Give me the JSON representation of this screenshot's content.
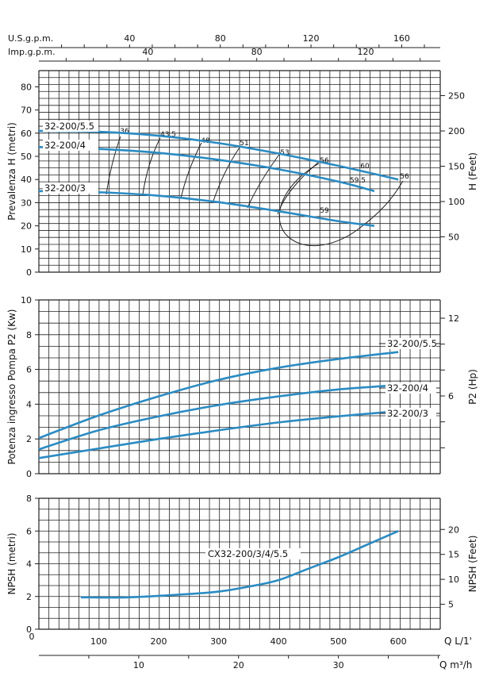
{
  "colors": {
    "curve": "#2a8bc3",
    "grid": "#222222",
    "text": "#111111",
    "eff": "#222222"
  },
  "chart_data": [
    {
      "type": "line",
      "title": "",
      "ylabel": "Prevalenza H (metri)",
      "ylabel_right": "H (Feet)",
      "xlim": [
        0,
        670
      ],
      "ylim": [
        0,
        87
      ],
      "yticks": [
        0,
        10,
        20,
        30,
        40,
        50,
        60,
        70,
        80
      ],
      "yticks_right": [
        50,
        100,
        150,
        200,
        250
      ],
      "top_axes": [
        {
          "label": "U.S.g.p.m.",
          "factor": 0.26417,
          "ticks": [
            40,
            80,
            120,
            160
          ]
        },
        {
          "label": "Imp.g.p.m.",
          "factor": 0.21997,
          "ticks": [
            40,
            80,
            120
          ]
        }
      ],
      "series": [
        {
          "name": "32-200/5.5",
          "x": [
            0,
            100,
            200,
            300,
            400,
            500,
            600
          ],
          "y": [
            61,
            60.6,
            58.9,
            55.7,
            51.2,
            45.9,
            40
          ]
        },
        {
          "name": "32-200/4",
          "x": [
            0,
            100,
            200,
            300,
            400,
            500,
            560
          ],
          "y": [
            54,
            53.2,
            51.5,
            48.5,
            44.4,
            39.1,
            35
          ]
        },
        {
          "name": "32-200/3",
          "x": [
            0,
            100,
            200,
            300,
            400,
            500,
            560
          ],
          "y": [
            35,
            34.5,
            33,
            30.2,
            26.3,
            22,
            20
          ]
        }
      ],
      "efficiency_labels": [
        "36",
        "43.5",
        "48",
        "51",
        "53",
        "56",
        "59",
        "59.5",
        "60",
        "56"
      ]
    },
    {
      "type": "line",
      "title": "",
      "ylabel": "Potenza ingresso Pompa P2 (Kw)",
      "ylabel_right": "P2 (Hp)",
      "xlim": [
        0,
        670
      ],
      "ylim": [
        0,
        10
      ],
      "yticks": [
        0,
        2,
        4,
        6,
        8,
        10
      ],
      "yticks_right": [
        6,
        12
      ],
      "series": [
        {
          "name": "32-200/5.5",
          "x": [
            0,
            100,
            200,
            300,
            400,
            500,
            600
          ],
          "y": [
            2.05,
            3.35,
            4.45,
            5.4,
            6.1,
            6.6,
            7.0
          ]
        },
        {
          "name": "32-200/4",
          "x": [
            0,
            100,
            200,
            300,
            400,
            500,
            600
          ],
          "y": [
            1.4,
            2.5,
            3.3,
            3.95,
            4.45,
            4.85,
            5.1
          ]
        },
        {
          "name": "32-200/3",
          "x": [
            0,
            100,
            200,
            300,
            400,
            500,
            600
          ],
          "y": [
            0.9,
            1.45,
            2.0,
            2.5,
            2.95,
            3.3,
            3.6
          ]
        }
      ]
    },
    {
      "type": "line",
      "title": "",
      "ylabel": "NPSH (metri)",
      "ylabel_right": "NPSH (Feet)",
      "xlabel": "Q L/1'",
      "xlabel2": "Q m³/h",
      "xlim": [
        0,
        670
      ],
      "ylim": [
        0,
        8
      ],
      "yticks": [
        0,
        2,
        4,
        6,
        8
      ],
      "yticks_right": [
        5,
        10,
        15,
        20
      ],
      "xticks": [
        100,
        200,
        300,
        400,
        500,
        600
      ],
      "xticks2": [
        10,
        20,
        30
      ],
      "series": [
        {
          "name": "CX32-200/3/4/5.5",
          "x": [
            70,
            150,
            250,
            300,
            350,
            400,
            450,
            500,
            550,
            600
          ],
          "y": [
            1.95,
            1.95,
            2.15,
            2.3,
            2.6,
            3.0,
            3.7,
            4.4,
            5.2,
            6.0
          ]
        }
      ]
    }
  ]
}
